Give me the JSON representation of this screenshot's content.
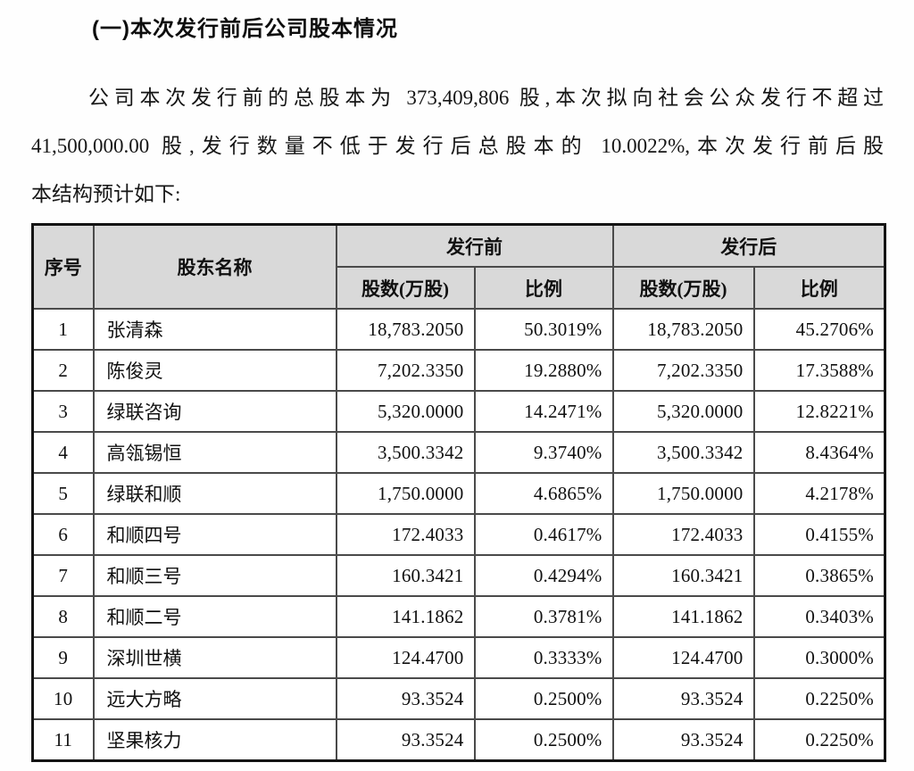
{
  "page": {
    "heading": "(一)本次发行前后公司股本情况",
    "paragraph_lines": [
      "公司本次发行前的总股本为 373,409,806 股,本次拟向社会公众发行不超过",
      "41,500,000.00 股,发行数量不低于发行后总股本的 10.0022%,本次发行前后股",
      "本结构预计如下:"
    ]
  },
  "table": {
    "header": {
      "index": "序号",
      "shareholder": "股东名称",
      "before_group": "发行前",
      "after_group": "发行后",
      "shares": "股数(万股)",
      "ratio": "比例"
    },
    "rows": [
      {
        "index": "1",
        "name": "张清森",
        "before_shares": "18,783.2050",
        "before_ratio": "50.3019%",
        "after_shares": "18,783.2050",
        "after_ratio": "45.2706%"
      },
      {
        "index": "2",
        "name": "陈俊灵",
        "before_shares": "7,202.3350",
        "before_ratio": "19.2880%",
        "after_shares": "7,202.3350",
        "after_ratio": "17.3588%"
      },
      {
        "index": "3",
        "name": "绿联咨询",
        "before_shares": "5,320.0000",
        "before_ratio": "14.2471%",
        "after_shares": "5,320.0000",
        "after_ratio": "12.8221%"
      },
      {
        "index": "4",
        "name": "高瓴锡恒",
        "before_shares": "3,500.3342",
        "before_ratio": "9.3740%",
        "after_shares": "3,500.3342",
        "after_ratio": "8.4364%"
      },
      {
        "index": "5",
        "name": "绿联和顺",
        "before_shares": "1,750.0000",
        "before_ratio": "4.6865%",
        "after_shares": "1,750.0000",
        "after_ratio": "4.2178%"
      },
      {
        "index": "6",
        "name": "和顺四号",
        "before_shares": "172.4033",
        "before_ratio": "0.4617%",
        "after_shares": "172.4033",
        "after_ratio": "0.4155%"
      },
      {
        "index": "7",
        "name": "和顺三号",
        "before_shares": "160.3421",
        "before_ratio": "0.4294%",
        "after_shares": "160.3421",
        "after_ratio": "0.3865%"
      },
      {
        "index": "8",
        "name": "和顺二号",
        "before_shares": "141.1862",
        "before_ratio": "0.3781%",
        "after_shares": "141.1862",
        "after_ratio": "0.3403%"
      },
      {
        "index": "9",
        "name": "深圳世横",
        "before_shares": "124.4700",
        "before_ratio": "0.3333%",
        "after_shares": "124.4700",
        "after_ratio": "0.3000%"
      },
      {
        "index": "10",
        "name": "远大方略",
        "before_shares": "93.3524",
        "before_ratio": "0.2500%",
        "after_shares": "93.3524",
        "after_ratio": "0.2250%"
      },
      {
        "index": "11",
        "name": "坚果核力",
        "before_shares": "93.3524",
        "before_ratio": "0.2500%",
        "after_shares": "93.3524",
        "after_ratio": "0.2250%"
      }
    ]
  },
  "colors": {
    "header_bg": "#d9d9d9",
    "outer_border": "#141414",
    "inner_border": "#4a4a4a",
    "text": "#101010"
  }
}
